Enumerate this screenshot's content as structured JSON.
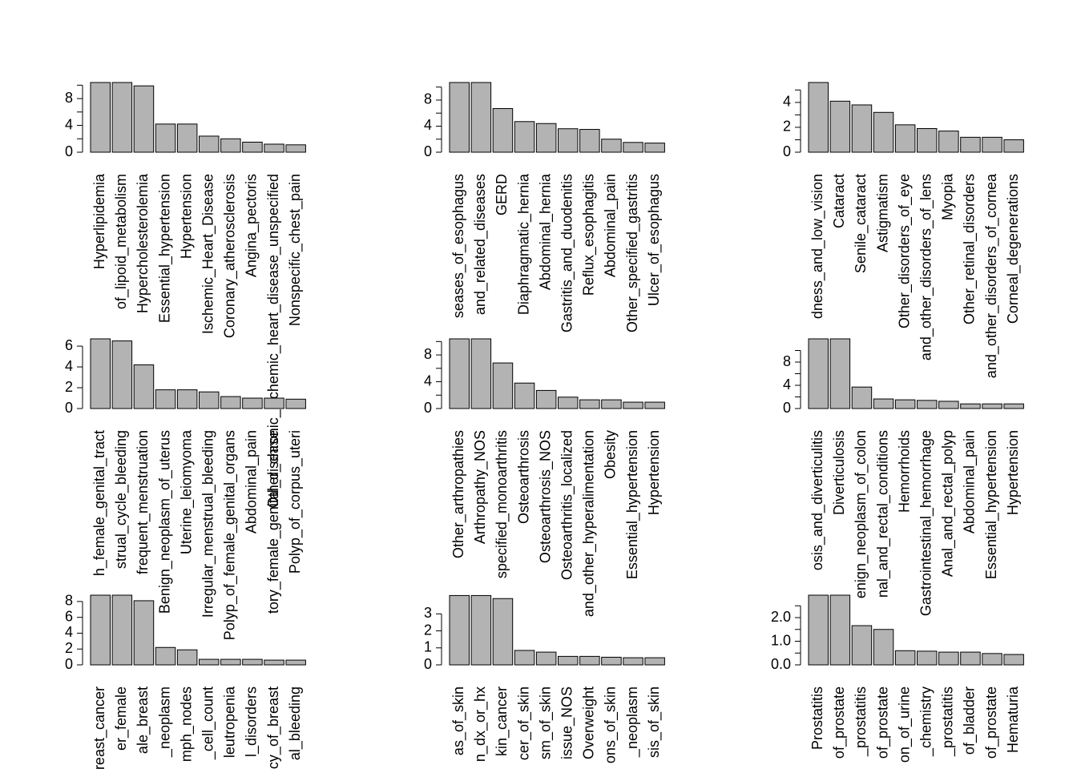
{
  "chart_data": [
    {
      "type": "bar",
      "color": "#b3b3b3",
      "ylim": [
        0,
        10.4
      ],
      "yticks": [
        0,
        4,
        8
      ],
      "yminorticks": [
        2,
        6,
        10
      ],
      "categories": [
        "Hyperlipidemia",
        "of_lipoid_metabolism",
        "Hypercholesterolemia",
        "Essential_hypertension",
        "Hypertension",
        "Ischemic_Heart_Disease",
        "Coronary_atherosclerosis",
        "Angina_pectoris",
        "Other_chronic_ischemic_heart_disease_unspecified",
        "Nonspecific_chest_pain"
      ],
      "values": [
        10.4,
        10.4,
        9.9,
        4.2,
        4.2,
        2.4,
        2.0,
        1.5,
        1.2,
        1.1
      ]
    },
    {
      "type": "bar",
      "color": "#b3b3b3",
      "ylim": [
        0,
        10.7
      ],
      "yticks": [
        0,
        4,
        8
      ],
      "yminorticks": [
        2,
        6,
        10
      ],
      "categories": [
        "seases_of_esophagus",
        "and_related_diseases",
        "GERD",
        "Diaphragmatic_hernia",
        "Abdominal_hernia",
        "Gastritis_and_duodenitis",
        "Reflux_esophagitis",
        "Abdominal_pain",
        "Other_specified_gastritis",
        "Ulcer_of_esophagus"
      ],
      "values": [
        10.7,
        10.7,
        6.7,
        4.7,
        4.4,
        3.6,
        3.5,
        2.0,
        1.5,
        1.4
      ]
    },
    {
      "type": "bar",
      "color": "#b3b3b3",
      "ylim": [
        0,
        5.6
      ],
      "yticks": [
        0,
        2,
        4
      ],
      "yminorticks": [
        1,
        3,
        5
      ],
      "categories": [
        "dness_and_low_vision",
        "Cataract",
        "Senile_cataract",
        "Astigmatism",
        "Other_disorders_of_eye",
        "and_other_disorders_of_lens",
        "Myopia",
        "Other_retinal_disorders",
        "and_other_disorders_of_cornea",
        "Corneal_degenerations"
      ],
      "values": [
        5.6,
        4.1,
        3.8,
        3.2,
        2.2,
        1.9,
        1.7,
        1.2,
        1.2,
        1.0
      ]
    },
    {
      "type": "bar",
      "color": "#b3b3b3",
      "ylim": [
        0,
        6.7
      ],
      "yticks": [
        0,
        2,
        4,
        6
      ],
      "yminorticks": [],
      "categories": [
        "h_female_genital_tract",
        "strual_cycle_bleeding",
        "frequent_menstruation",
        "Benign_neoplasm_of_uterus",
        "Uterine_leiomyoma",
        "Irregular_menstrual_bleeding",
        "Polyp_of_female_genital_organs",
        "Abdominal_pain",
        "tory_female_genital_disease",
        "Polyp_of_corpus_uteri"
      ],
      "values": [
        6.7,
        6.5,
        4.2,
        1.8,
        1.8,
        1.6,
        1.15,
        1.0,
        1.0,
        0.9
      ]
    },
    {
      "type": "bar",
      "color": "#b3b3b3",
      "ylim": [
        0,
        10.4
      ],
      "yticks": [
        0,
        4,
        8
      ],
      "yminorticks": [
        2,
        6,
        10
      ],
      "categories": [
        "Other_arthropathies",
        "Arthropathy_NOS",
        "specified_monoarthritis",
        "Osteoarthrosis",
        "Osteoarthrosis_NOS",
        "Osteoarthritis_localized",
        "and_other_hyperalimentation",
        "Obesity",
        "Essential_hypertension",
        "Hypertension"
      ],
      "values": [
        10.4,
        10.4,
        6.8,
        3.8,
        2.7,
        1.7,
        1.3,
        1.3,
        0.95,
        0.95
      ]
    },
    {
      "type": "bar",
      "color": "#b3b3b3",
      "ylim": [
        0,
        12.0
      ],
      "yticks": [
        0,
        4,
        8
      ],
      "yminorticks": [
        2,
        6,
        10
      ],
      "categories": [
        "osis_and_diverticulitis",
        "Diverticulosis",
        "enign_neoplasm_of_colon",
        "nal_and_rectal_conditions",
        "Hemorrhoids",
        "Gastrointestinal_hemorrhage",
        "Anal_and_rectal_polyp",
        "Abdominal_pain",
        "Essential_hypertension",
        "Hypertension"
      ],
      "values": [
        12.0,
        12.0,
        3.7,
        1.65,
        1.5,
        1.4,
        1.25,
        0.8,
        0.8,
        0.8
      ]
    },
    {
      "type": "bar",
      "color": "#b3b3b3",
      "ylim": [
        0,
        8.8
      ],
      "yticks": [
        0,
        2,
        4,
        6,
        8
      ],
      "yminorticks": [],
      "categories": [
        "Breast_cancer",
        "er_female",
        "ale_breast",
        "_neoplasm",
        "mph_nodes",
        "_cell_count",
        "leutropenia",
        "l_disorders",
        "cy_of_breast",
        "al_bleeding"
      ],
      "values": [
        8.8,
        8.8,
        8.1,
        2.2,
        1.9,
        0.7,
        0.7,
        0.7,
        0.6,
        0.6
      ]
    },
    {
      "type": "bar",
      "color": "#b3b3b3",
      "ylim": [
        0,
        4.1
      ],
      "yticks": [
        0,
        1,
        2,
        3
      ],
      "yminorticks": [],
      "categories": [
        "as_of_skin",
        "n_dx_or_hx",
        "kin_cancer",
        "cer_of_skin",
        "sm_of_skin",
        "issue_NOS",
        "Overweight",
        "ons_of_skin",
        "_neoplasm",
        "sis_of_skin"
      ],
      "values": [
        4.08,
        4.08,
        3.9,
        0.85,
        0.75,
        0.5,
        0.5,
        0.45,
        0.42,
        0.42
      ]
    },
    {
      "type": "bar",
      "color": "#b3b3b3",
      "ylim": [
        0,
        2.95
      ],
      "yticks": [
        {
          "value": 0,
          "label": "0.0"
        },
        {
          "value": 1,
          "label": "1.0"
        },
        {
          "value": 2,
          "label": "2.0"
        }
      ],
      "yminorticks": [
        0.5,
        1.5,
        2.5
      ],
      "categories": [
        "Prostatitis",
        "of_prostate",
        "_prostatitis",
        "of_prostate",
        "on_of_urine",
        "_chemistry",
        "_prostatitis",
        "of_bladder",
        "of_prostate",
        "Hematuria"
      ],
      "values": [
        2.95,
        2.95,
        1.66,
        1.5,
        0.6,
        0.58,
        0.54,
        0.54,
        0.48,
        0.44
      ]
    }
  ]
}
